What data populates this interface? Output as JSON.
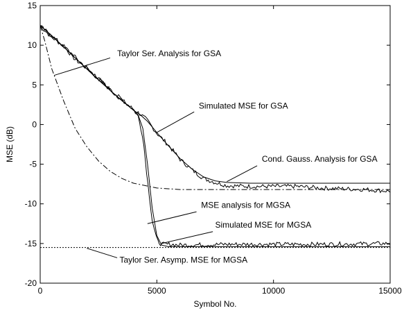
{
  "chart_data": {
    "type": "line",
    "title": "",
    "xlabel": "Symbol No.",
    "ylabel": "MSE (dB)",
    "xlim": [
      0,
      15000
    ],
    "ylim": [
      -20,
      15
    ],
    "grid": false,
    "legend": "none",
    "x_ticks": [
      0,
      5000,
      10000,
      15000
    ],
    "x_tick_labels": [
      "0",
      "5000",
      "10000",
      "15000"
    ],
    "y_ticks": [
      15,
      10,
      5,
      0,
      -5,
      -10,
      -15,
      -20
    ],
    "y_tick_labels": [
      "15",
      "10",
      "5",
      "0",
      "-5",
      "-10",
      "-15",
      "-20"
    ],
    "series": [
      {
        "style": "solid",
        "x": [
          0,
          500,
          1000,
          1500,
          2000,
          2500,
          3000,
          3500,
          4000,
          4300,
          4600,
          5000,
          5500,
          6000,
          6500,
          7000,
          7500,
          8000,
          9000,
          10000,
          12000,
          15000
        ],
        "y": [
          12.5,
          11.2,
          9.8,
          8.4,
          7.0,
          5.6,
          4.3,
          3.0,
          1.8,
          1.2,
          0.4,
          -1.0,
          -2.7,
          -4.3,
          -5.6,
          -6.6,
          -7.1,
          -7.3,
          -7.4,
          -7.4,
          -7.4,
          -7.4
        ]
      },
      {
        "style": "solid-noisy",
        "x": [
          0,
          500,
          1000,
          1500,
          2000,
          2500,
          3000,
          3500,
          4000,
          4300,
          4600,
          5000,
          5500,
          6000,
          6500,
          7000,
          7500,
          8000,
          9000,
          10000,
          11000,
          12000,
          13000,
          14000,
          15000
        ],
        "y": [
          12.4,
          11.0,
          9.9,
          8.2,
          7.1,
          5.8,
          4.4,
          3.1,
          1.9,
          1.3,
          0.5,
          -1.1,
          -2.6,
          -4.4,
          -5.7,
          -6.8,
          -7.3,
          -7.7,
          -7.8,
          -7.8,
          -7.8,
          -8.0,
          -8.1,
          -8.2,
          -8.4
        ]
      },
      {
        "style": "dashdot",
        "x": [
          0,
          200,
          500,
          1000,
          1500,
          2000,
          2500,
          3000,
          3500,
          4000,
          5000,
          6000,
          8000,
          10000,
          12000,
          15000
        ],
        "y": [
          12.5,
          10.5,
          7.0,
          3.0,
          -0.5,
          -2.8,
          -4.6,
          -5.9,
          -6.8,
          -7.4,
          -8.0,
          -8.2,
          -8.2,
          -8.2,
          -8.2,
          -8.2
        ]
      },
      {
        "style": "solid",
        "x": [
          0,
          1000,
          2000,
          3000,
          4000,
          4200,
          4400,
          4600,
          4800,
          5000,
          5200,
          5500,
          6000,
          8000,
          10000,
          15000
        ],
        "y": [
          12.5,
          9.8,
          7.0,
          4.3,
          1.8,
          1.2,
          -0.5,
          -5.0,
          -10.5,
          -14.0,
          -15.2,
          -15.4,
          -15.4,
          -15.4,
          -15.4,
          -15.4
        ]
      },
      {
        "style": "solid-noisy",
        "x": [
          0,
          1000,
          2000,
          3000,
          4000,
          4200,
          4400,
          4600,
          4800,
          5000,
          5200,
          5500,
          6000,
          8000,
          10000,
          12000,
          15000
        ],
        "y": [
          12.4,
          9.9,
          7.1,
          4.4,
          1.9,
          1.0,
          -1.5,
          -7.0,
          -12.0,
          -14.6,
          -15.1,
          -15.1,
          -15.2,
          -15.1,
          -15.1,
          -15.1,
          -15.0
        ]
      },
      {
        "style": "dotted",
        "x": [
          0,
          15000
        ],
        "y": [
          -15.5,
          -15.5
        ]
      }
    ],
    "annotations": [
      {
        "text": "Taylor Ser. Analysis for GSA",
        "x": 3300,
        "y": 8.6,
        "lx1": 3000,
        "ly1": 8.4,
        "lx2": 600,
        "ly2": 6.2
      },
      {
        "text": "Simulated MSE for GSA",
        "x": 6800,
        "y": 2.0,
        "lx1": 6600,
        "ly1": 1.6,
        "lx2": 5000,
        "ly2": -1.0
      },
      {
        "text": "Cond. Gauss. Analysis for GSA",
        "x": 9500,
        "y": -4.7,
        "lx1": 9300,
        "ly1": -5.2,
        "lx2": 8000,
        "ly2": -7.2
      },
      {
        "text": "MSE analysis for MGSA",
        "x": 6900,
        "y": -10.5,
        "lx1": 6700,
        "ly1": -11.0,
        "lx2": 4600,
        "ly2": -12.5
      },
      {
        "text": "Simulated MSE for MGSA",
        "x": 7500,
        "y": -13.0,
        "lx1": 7400,
        "ly1": -13.5,
        "lx2": 5200,
        "ly2": -15.0
      },
      {
        "text": "Taylor Ser. Asymp. MSE for MGSA",
        "x": 3400,
        "y": -17.4,
        "lx1": 3300,
        "ly1": -16.8,
        "lx2": 2000,
        "ly2": -15.6
      }
    ]
  }
}
